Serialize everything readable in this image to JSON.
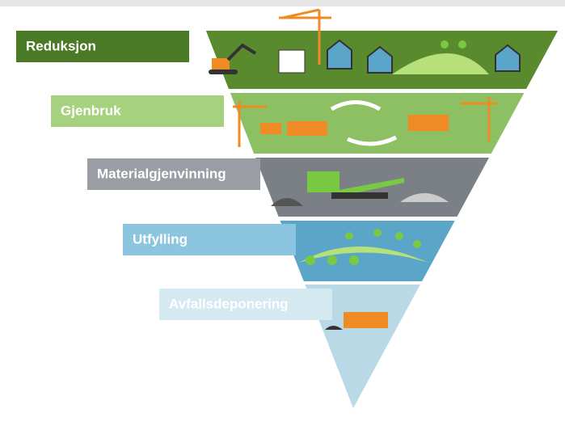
{
  "levels": [
    {
      "label": "Reduksjon"
    },
    {
      "label": "Gjenbruk"
    },
    {
      "label": "Materialgjenvinning"
    },
    {
      "label": "Utfylling"
    },
    {
      "label": "Avfallsdeponering"
    }
  ]
}
